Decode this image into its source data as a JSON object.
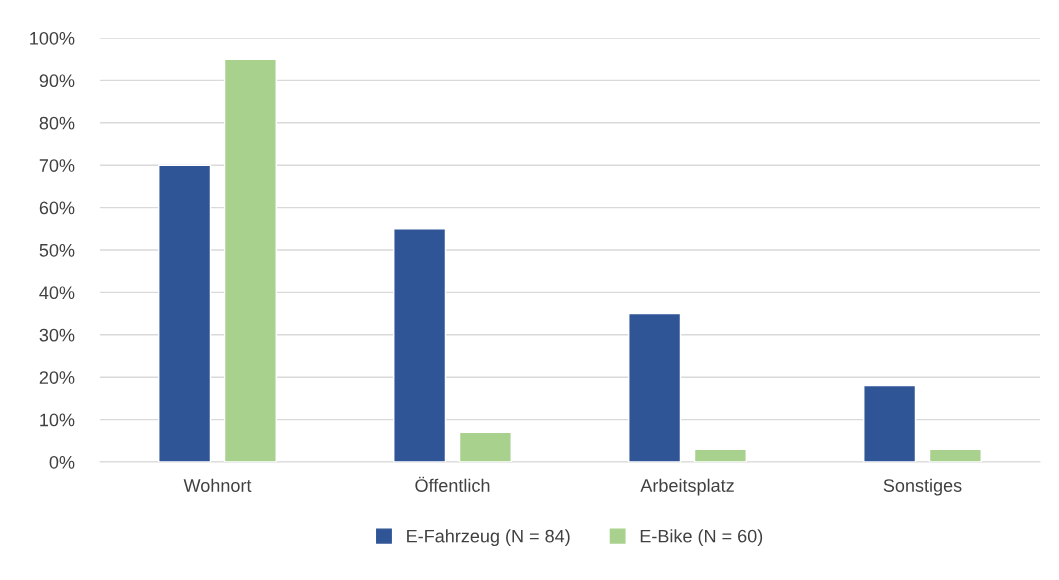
{
  "chart_data": {
    "type": "bar",
    "categories": [
      "Wohnort",
      "Öffentlich",
      "Arbeitsplatz",
      "Sonstiges"
    ],
    "series": [
      {
        "name": "E-Fahrzeug (N = 84)",
        "color": "#2f5597",
        "values": [
          70,
          55,
          35,
          18
        ]
      },
      {
        "name": "E-Bike (N = 60)",
        "color": "#a9d18e",
        "values": [
          95,
          7,
          3,
          3
        ]
      }
    ],
    "ylim": [
      0,
      100
    ],
    "yticks": [
      {
        "value": 0,
        "label": "0%"
      },
      {
        "value": 10,
        "label": "10%"
      },
      {
        "value": 20,
        "label": "20%"
      },
      {
        "value": 30,
        "label": "30%"
      },
      {
        "value": 40,
        "label": "40%"
      },
      {
        "value": 50,
        "label": "50%"
      },
      {
        "value": 60,
        "label": "60%"
      },
      {
        "value": 70,
        "label": "70%"
      },
      {
        "value": 80,
        "label": "80%"
      },
      {
        "value": 90,
        "label": "90%"
      },
      {
        "value": 100,
        "label": "100%"
      }
    ],
    "grid": "y",
    "legend": "bottom"
  }
}
